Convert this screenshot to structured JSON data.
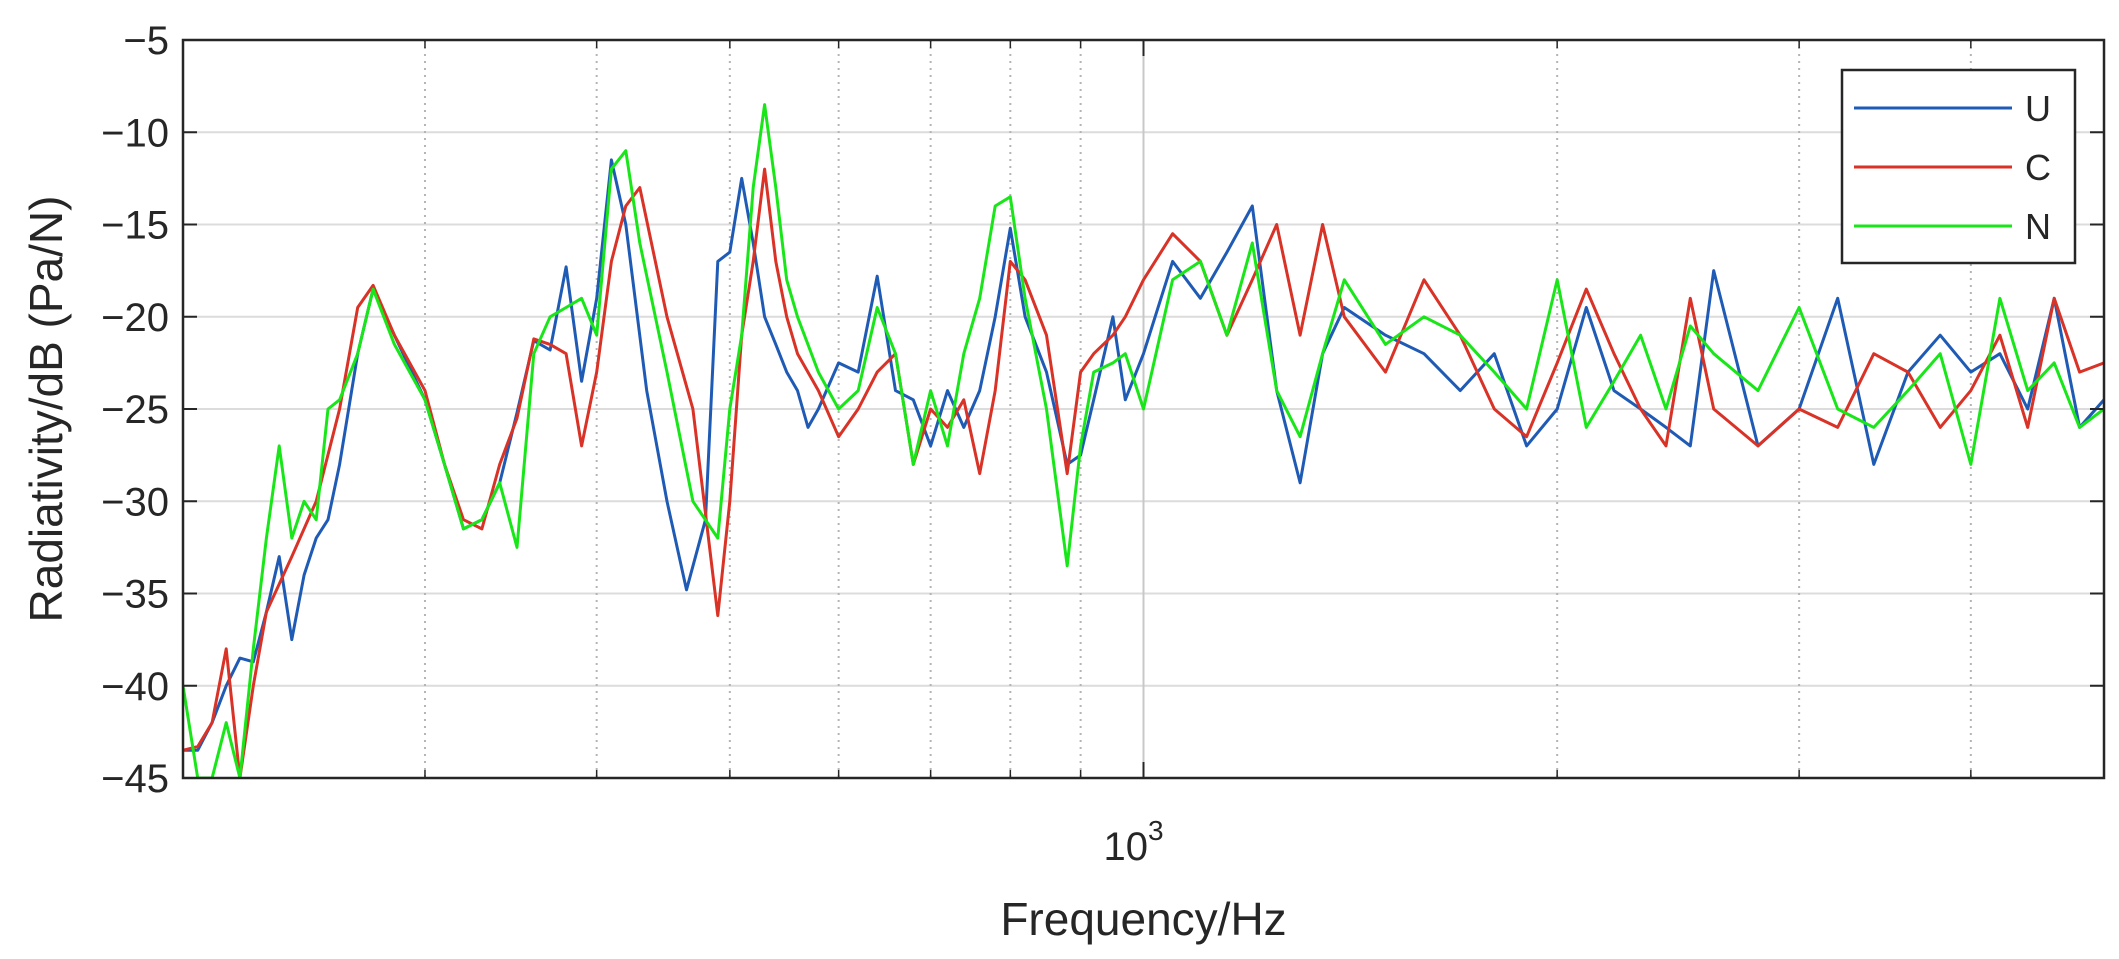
{
  "chart_data": {
    "type": "line",
    "title": "",
    "xlabel": "Frequency/Hz",
    "ylabel": "Radiativity/dB (Pa/N)",
    "x_scale": "log",
    "xlim": [
      200,
      5000
    ],
    "ylim": [
      -45,
      -5
    ],
    "x_ticks": [
      1000
    ],
    "x_tick_labels": [
      {
        "base": "10",
        "exp": "3"
      }
    ],
    "x_minor_ticks": [
      300,
      400,
      500,
      600,
      700,
      800,
      900,
      2000,
      3000,
      4000
    ],
    "y_ticks": [
      -45,
      -40,
      -35,
      -30,
      -25,
      -20,
      -15,
      -10,
      -5
    ],
    "y_tick_labels": [
      "−45",
      "−40",
      "−35",
      "−30",
      "−25",
      "−20",
      "−15",
      "−10",
      "−5"
    ],
    "grid": true,
    "legend_position": "top-right",
    "series": [
      {
        "name": "U",
        "color": "#1f5bb5",
        "x": [
          200,
          205,
          210,
          215,
          220,
          225,
          230,
          235,
          240,
          245,
          250,
          255,
          260,
          268,
          275,
          285,
          300,
          310,
          320,
          330,
          340,
          350,
          360,
          370,
          380,
          390,
          400,
          410,
          420,
          435,
          450,
          465,
          480,
          490,
          500,
          510,
          520,
          530,
          540,
          550,
          560,
          570,
          580,
          600,
          620,
          640,
          660,
          680,
          700,
          720,
          740,
          760,
          780,
          800,
          820,
          850,
          880,
          900,
          920,
          950,
          970,
          1000,
          1050,
          1100,
          1150,
          1200,
          1250,
          1300,
          1350,
          1400,
          1500,
          1600,
          1700,
          1800,
          1900,
          2000,
          2100,
          2200,
          2300,
          2400,
          2500,
          2600,
          2800,
          3000,
          3200,
          3400,
          3600,
          3800,
          4000,
          4200,
          4400,
          4600,
          4800,
          5000
        ],
        "y": [
          -43.5,
          -43.5,
          -42,
          -40,
          -38.5,
          -38.7,
          -36,
          -33,
          -37.5,
          -34,
          -32,
          -31,
          -28,
          -22,
          -18.5,
          -21,
          -24.5,
          -28,
          -31.5,
          -31,
          -29,
          -25.2,
          -21.3,
          -21.8,
          -17.3,
          -23.5,
          -19,
          -11.5,
          -15,
          -24,
          -30,
          -34.8,
          -31,
          -17,
          -16.5,
          -12.5,
          -16,
          -20,
          -21.5,
          -23,
          -24,
          -26,
          -25,
          -22.5,
          -23,
          -17.8,
          -24,
          -24.5,
          -27,
          -24,
          -26,
          -24,
          -20,
          -15.2,
          -20,
          -23,
          -28,
          -27.5,
          -24.5,
          -20,
          -24.5,
          -22,
          -17,
          -19,
          -16.5,
          -14,
          -24,
          -29,
          -22,
          -19.5,
          -21,
          -22,
          -24,
          -22,
          -27,
          -25,
          -19.5,
          -24,
          -25,
          -26,
          -27,
          -17.5,
          -27,
          -25,
          -19,
          -28,
          -23,
          -21,
          -23,
          -22,
          -25,
          -19,
          -26,
          -24.5
        ]
      },
      {
        "name": "C",
        "color": "#d93226",
        "x": [
          200,
          205,
          210,
          215,
          220,
          225,
          230,
          240,
          250,
          260,
          268,
          275,
          285,
          300,
          310,
          320,
          330,
          340,
          350,
          360,
          370,
          380,
          390,
          400,
          410,
          420,
          430,
          450,
          470,
          490,
          500,
          510,
          520,
          530,
          540,
          550,
          560,
          580,
          600,
          620,
          640,
          660,
          680,
          700,
          720,
          740,
          760,
          780,
          800,
          820,
          850,
          880,
          900,
          920,
          950,
          970,
          1000,
          1050,
          1100,
          1150,
          1200,
          1250,
          1300,
          1350,
          1400,
          1500,
          1600,
          1700,
          1800,
          1900,
          2000,
          2100,
          2200,
          2300,
          2400,
          2500,
          2600,
          2800,
          3000,
          3200,
          3400,
          3600,
          3800,
          4000,
          4200,
          4400,
          4600,
          4800,
          5000
        ],
        "y": [
          -43.5,
          -43.3,
          -42,
          -38,
          -45,
          -40,
          -36,
          -33,
          -30,
          -25,
          -19.5,
          -18.3,
          -21,
          -24,
          -28,
          -31,
          -31.5,
          -28,
          -25.5,
          -21.2,
          -21.5,
          -22,
          -27,
          -23,
          -17,
          -14,
          -13,
          -20,
          -25,
          -36.2,
          -30,
          -21,
          -17,
          -12,
          -17,
          -20,
          -22,
          -24,
          -26.5,
          -25,
          -23,
          -22,
          -28,
          -25,
          -26,
          -24.5,
          -28.5,
          -24,
          -17,
          -18,
          -21,
          -28.5,
          -23,
          -22,
          -21,
          -20,
          -18,
          -15.5,
          -17,
          -21,
          -18,
          -15,
          -21,
          -15,
          -20,
          -23,
          -18,
          -21,
          -25,
          -26.5,
          -22.5,
          -18.5,
          -22,
          -25,
          -27,
          -19,
          -25,
          -27,
          -25,
          -26,
          -22,
          -23,
          -26,
          -24,
          -21,
          -26,
          -19,
          -23,
          -22.5
        ]
      },
      {
        "name": "N",
        "color": "#19e619",
        "x": [
          200,
          205,
          210,
          215,
          220,
          225,
          230,
          235,
          240,
          245,
          250,
          255,
          260,
          268,
          275,
          285,
          300,
          310,
          320,
          330,
          340,
          350,
          360,
          370,
          380,
          390,
          400,
          410,
          420,
          430,
          450,
          470,
          490,
          500,
          510,
          520,
          530,
          540,
          550,
          560,
          580,
          600,
          620,
          640,
          660,
          680,
          700,
          720,
          740,
          760,
          780,
          800,
          820,
          850,
          880,
          900,
          920,
          950,
          970,
          1000,
          1050,
          1100,
          1150,
          1200,
          1250,
          1300,
          1350,
          1400,
          1500,
          1600,
          1700,
          1800,
          1900,
          2000,
          2100,
          2200,
          2300,
          2400,
          2500,
          2600,
          2800,
          3000,
          3200,
          3400,
          3600,
          3800,
          4000,
          4200,
          4400,
          4600,
          4800,
          5000
        ],
        "y": [
          -40,
          -45,
          -45,
          -42,
          -45,
          -38,
          -32,
          -27,
          -32,
          -30,
          -31,
          -25,
          -24.5,
          -22,
          -18.5,
          -21.5,
          -24.5,
          -28,
          -31.5,
          -31,
          -29,
          -32.5,
          -22,
          -20,
          -19.5,
          -19,
          -21,
          -12,
          -11,
          -16,
          -23,
          -30,
          -32,
          -25,
          -21,
          -13,
          -8.5,
          -13,
          -18,
          -20,
          -23,
          -25,
          -24,
          -19.5,
          -22,
          -28,
          -24,
          -27,
          -22,
          -19,
          -14,
          -13.5,
          -19,
          -25,
          -33.5,
          -27,
          -23,
          -22.5,
          -22,
          -25,
          -18,
          -17,
          -21,
          -16,
          -24,
          -26.5,
          -22,
          -18,
          -21.5,
          -20,
          -21,
          -23,
          -25,
          -18,
          -26,
          -23.5,
          -21,
          -25,
          -20.5,
          -22,
          -24,
          -19.5,
          -25,
          -26,
          -24,
          -22,
          -28,
          -19,
          -24,
          -22.5,
          -26,
          -25
        ]
      }
    ]
  }
}
